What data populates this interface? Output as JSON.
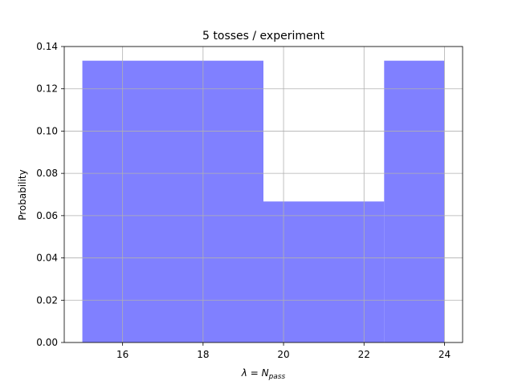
{
  "chart_data": {
    "type": "bar",
    "title": "5 tosses / experiment",
    "xlabel_symbol": "λ",
    "xlabel_equals": " = ",
    "xlabel_var": "N",
    "xlabel_sub": "pass",
    "ylabel": "Probability",
    "bins": [
      {
        "x0": 15.0,
        "x1": 19.5,
        "value": 0.1333
      },
      {
        "x0": 19.5,
        "x1": 22.5,
        "value": 0.0667
      },
      {
        "x0": 22.5,
        "x1": 24.0,
        "value": 0.1333
      }
    ],
    "xlim": [
      14.55,
      24.45
    ],
    "ylim": [
      0.0,
      0.14
    ],
    "xticks": [
      16,
      18,
      20,
      22,
      24
    ],
    "yticks": [
      0.0,
      0.02,
      0.04,
      0.06,
      0.08,
      0.1,
      0.12,
      0.14
    ],
    "xtick_labels": [
      "16",
      "18",
      "20",
      "22",
      "24"
    ],
    "ytick_labels": [
      "0.00",
      "0.02",
      "0.04",
      "0.06",
      "0.08",
      "0.10",
      "0.12",
      "0.14"
    ],
    "bar_color": "#8080ff",
    "grid": true
  }
}
